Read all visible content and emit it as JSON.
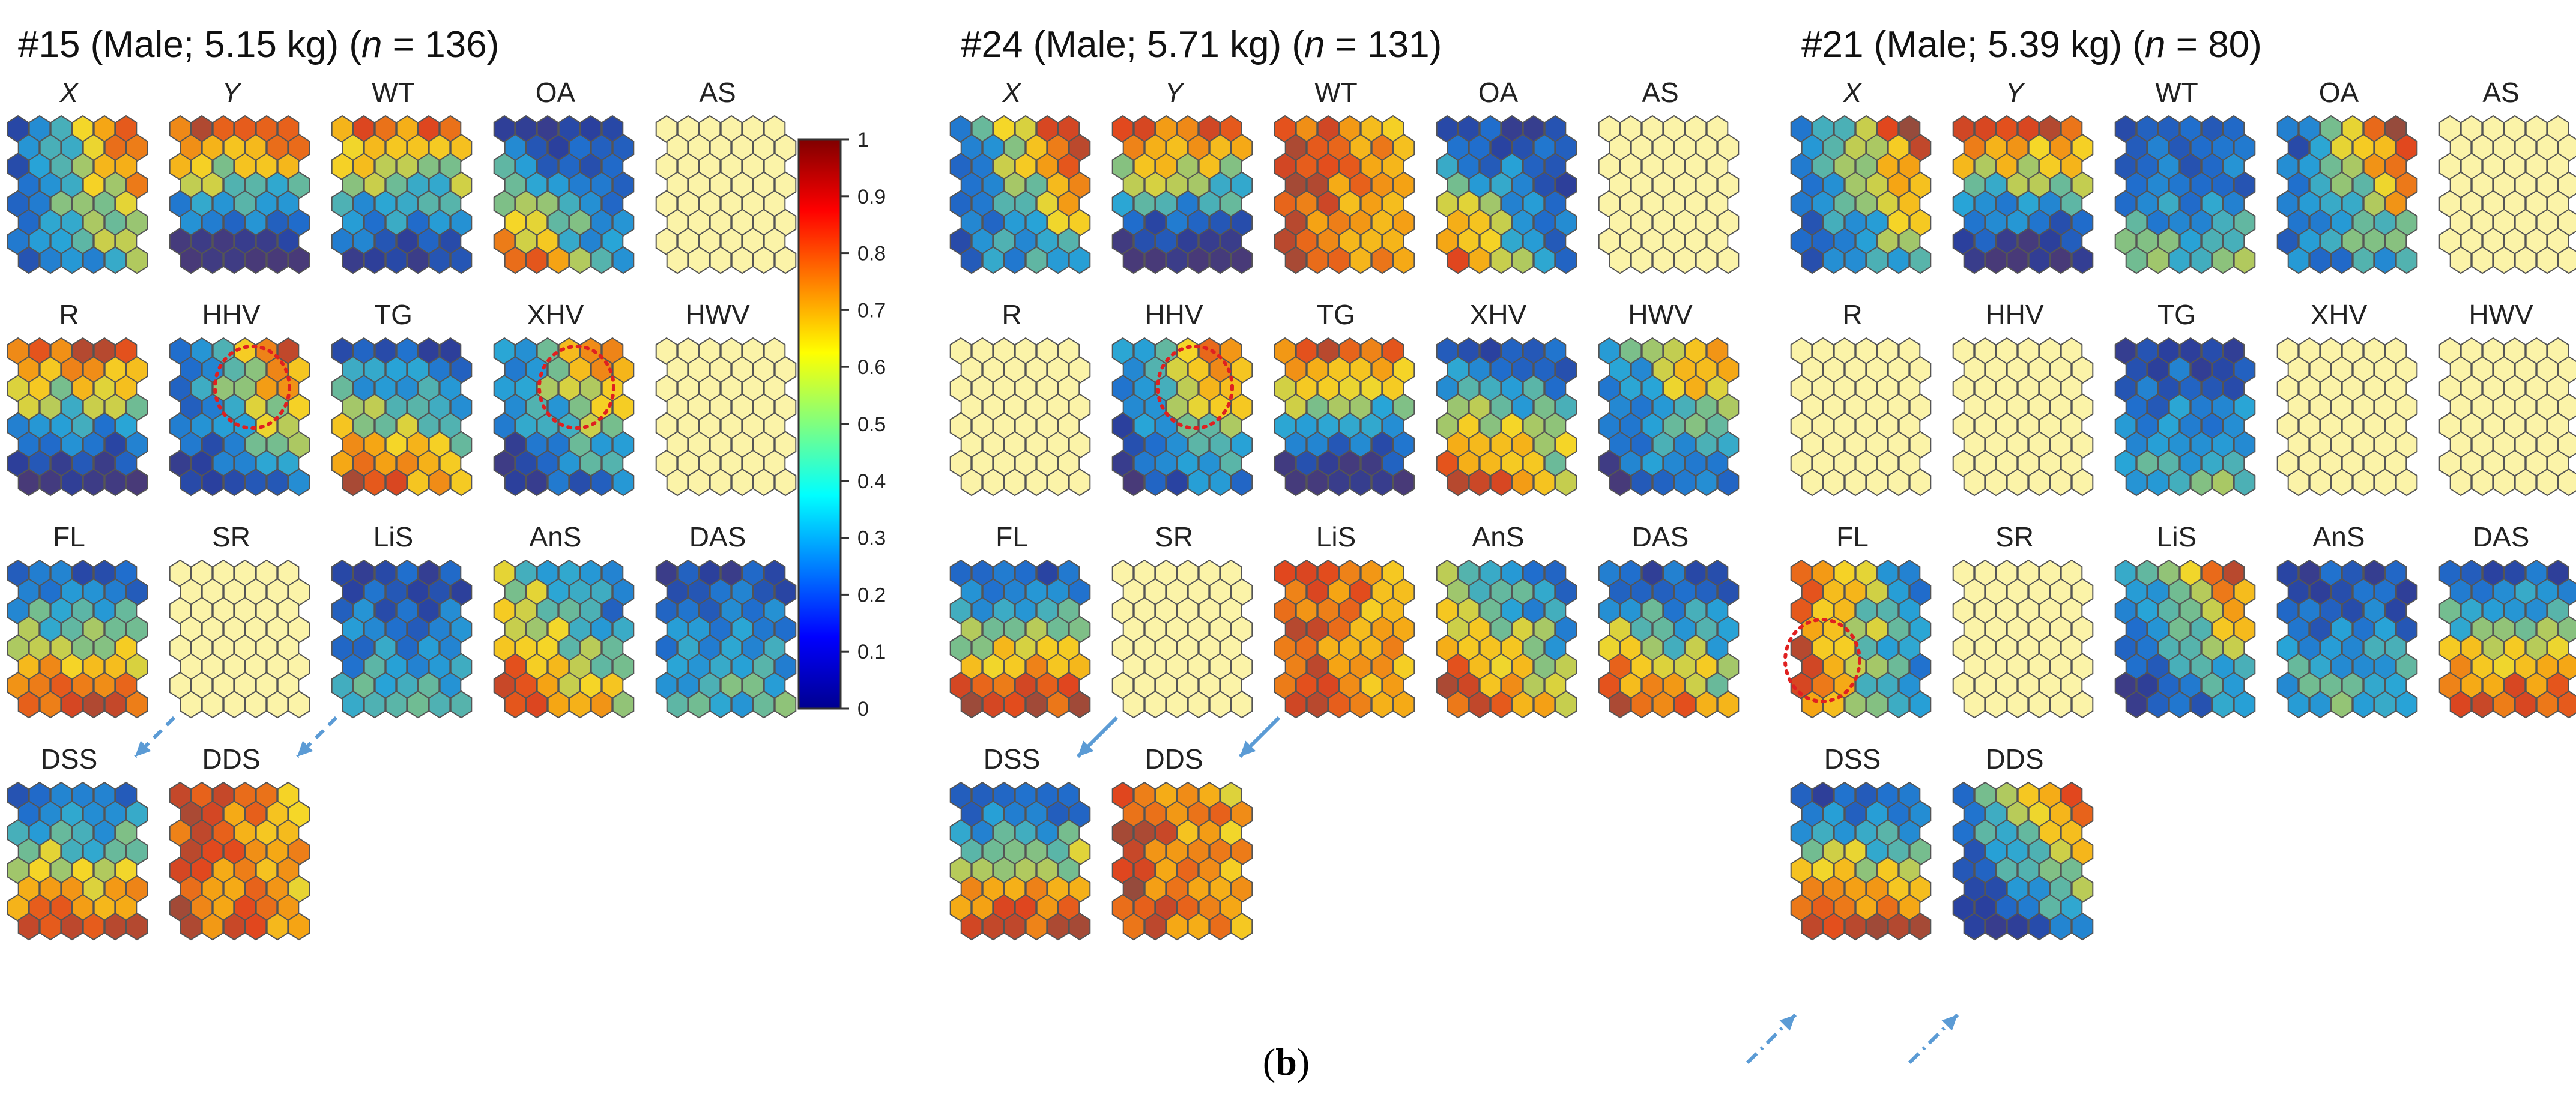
{
  "caption": {
    "open": "(",
    "letter": "b",
    "close": ")"
  },
  "colorbar": {
    "ticks": [
      "0",
      "0.1",
      "0.2",
      "0.3",
      "0.4",
      "0.5",
      "0.6",
      "0.7",
      "0.8",
      "0.9",
      "1"
    ],
    "colormap": "jet"
  },
  "groups": [
    {
      "id": "#15",
      "heading": {
        "id": "#15",
        "sex_weight": "(Male; 5.15 kg)",
        "open": "(",
        "n_symbol": "n",
        "n_text": " = 136)"
      },
      "maps": [
        {
          "label": "X",
          "italic": true,
          "pattern": "xgrad"
        },
        {
          "label": "Y",
          "italic": true,
          "pattern": "ygrad"
        },
        {
          "label": "WT",
          "pattern": "wt"
        },
        {
          "label": "OA",
          "pattern": "oa"
        },
        {
          "label": "AS",
          "pattern": "flat"
        },
        {
          "label": "R",
          "pattern": "ygrad"
        },
        {
          "label": "HHV",
          "pattern": "corner",
          "circle": true
        },
        {
          "label": "TG",
          "pattern": "botred"
        },
        {
          "label": "XHV",
          "pattern": "corner",
          "circle": true
        },
        {
          "label": "HWV",
          "pattern": "flat"
        },
        {
          "label": "FL",
          "pattern": "botwarm"
        },
        {
          "label": "SR",
          "pattern": "flat"
        },
        {
          "label": "LiS",
          "pattern": "blue"
        },
        {
          "label": "AnS",
          "pattern": "diag"
        },
        {
          "label": "DAS",
          "pattern": "blue"
        },
        {
          "label": "DSS",
          "pattern": "botwarm",
          "arrow": "dashed"
        },
        {
          "label": "DDS",
          "pattern": "warm",
          "arrow": "dashed"
        }
      ]
    },
    {
      "id": "#24",
      "heading": {
        "id": "#24",
        "sex_weight": "(Male; 5.71 kg)",
        "open": "(",
        "n_symbol": "n",
        "n_text": " = 131)"
      },
      "maps": [
        {
          "label": "X",
          "italic": true,
          "pattern": "xgrad"
        },
        {
          "label": "Y",
          "italic": true,
          "pattern": "ygrad"
        },
        {
          "label": "WT",
          "pattern": "warm"
        },
        {
          "label": "OA",
          "pattern": "oa"
        },
        {
          "label": "AS",
          "pattern": "flat"
        },
        {
          "label": "R",
          "pattern": "flat"
        },
        {
          "label": "HHV",
          "pattern": "corner",
          "circle": true
        },
        {
          "label": "TG",
          "pattern": "ygrad"
        },
        {
          "label": "XHV",
          "pattern": "botred"
        },
        {
          "label": "HWV",
          "pattern": "corner"
        },
        {
          "label": "FL",
          "pattern": "botwarm"
        },
        {
          "label": "SR",
          "pattern": "flat"
        },
        {
          "label": "LiS",
          "pattern": "warm"
        },
        {
          "label": "AnS",
          "pattern": "diag"
        },
        {
          "label": "DAS",
          "pattern": "botred"
        },
        {
          "label": "DSS",
          "pattern": "botwarm",
          "arrow": "solid"
        },
        {
          "label": "DDS",
          "pattern": "warm",
          "arrow": "solid"
        }
      ]
    },
    {
      "id": "#21",
      "heading": {
        "id": "#21",
        "sex_weight": "(Male; 5.39 kg)",
        "open": "(",
        "n_symbol": "n",
        "n_text": " = 80)"
      },
      "maps": [
        {
          "label": "X",
          "italic": true,
          "pattern": "xgrad"
        },
        {
          "label": "Y",
          "italic": true,
          "pattern": "ygrad"
        },
        {
          "label": "WT",
          "pattern": "blue"
        },
        {
          "label": "OA",
          "pattern": "xgrad"
        },
        {
          "label": "AS",
          "pattern": "flat"
        },
        {
          "label": "R",
          "pattern": "flat"
        },
        {
          "label": "HHV",
          "pattern": "flat"
        },
        {
          "label": "TG",
          "pattern": "blue"
        },
        {
          "label": "XHV",
          "pattern": "flat"
        },
        {
          "label": "HWV",
          "pattern": "flat"
        },
        {
          "label": "FL",
          "pattern": "leftred",
          "circle": true
        },
        {
          "label": "SR",
          "pattern": "flat"
        },
        {
          "label": "LiS",
          "pattern": "corner"
        },
        {
          "label": "AnS",
          "pattern": "blue"
        },
        {
          "label": "DAS",
          "pattern": "botwarm"
        },
        {
          "label": "DSS",
          "pattern": "botwarm",
          "arrow": "dashdot"
        },
        {
          "label": "DDS",
          "pattern": "corner",
          "arrow": "dashdot"
        }
      ]
    }
  ]
}
